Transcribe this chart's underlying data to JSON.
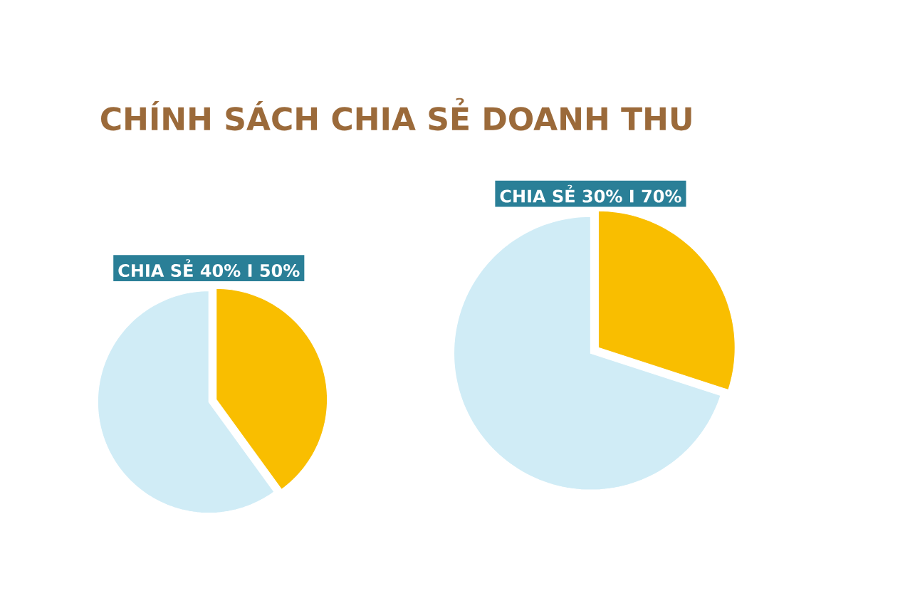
{
  "chart_data": [
    {
      "type": "pie",
      "title": "CHÍNH SÁCH CHIA SẺ DOANH THU",
      "subtitle": "CHIA SẺ 40% I 50%",
      "categories": [
        null,
        null
      ],
      "values": [
        40,
        60
      ],
      "colors": [
        "#f9be00",
        "#d0ecf6"
      ]
    },
    {
      "type": "pie",
      "subtitle": "CHIA SẺ 30% I 70%",
      "categories": [
        null,
        null
      ],
      "values": [
        30,
        70
      ],
      "colors": [
        "#f9be00",
        "#d0ecf6"
      ]
    }
  ]
}
